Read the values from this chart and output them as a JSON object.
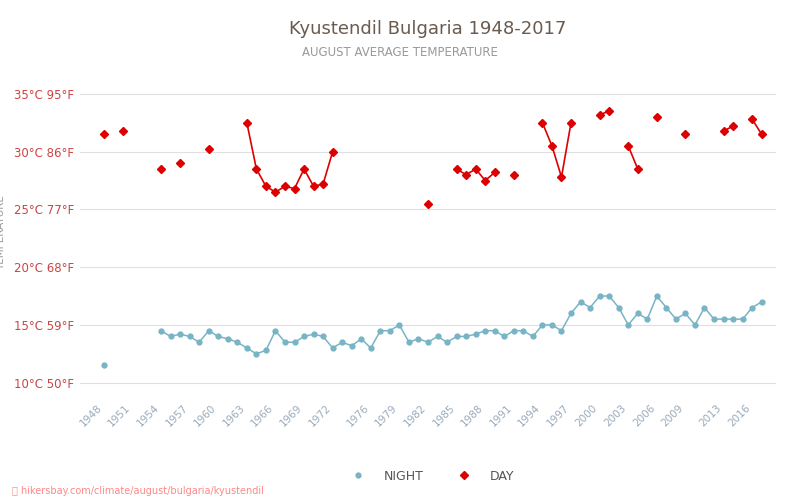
{
  "title": "Kyustendil Bulgaria 1948-2017",
  "subtitle": "AUGUST AVERAGE TEMPERATURE",
  "xlabel_years": [
    1948,
    1951,
    1954,
    1957,
    1960,
    1963,
    1966,
    1969,
    1972,
    1976,
    1979,
    1982,
    1985,
    1988,
    1991,
    1994,
    1997,
    2000,
    2003,
    2006,
    2009,
    2013,
    2016
  ],
  "years": [
    1948,
    1949,
    1950,
    1951,
    1952,
    1953,
    1954,
    1955,
    1956,
    1957,
    1958,
    1959,
    1960,
    1961,
    1962,
    1963,
    1964,
    1965,
    1966,
    1967,
    1968,
    1969,
    1970,
    1971,
    1972,
    1973,
    1974,
    1975,
    1976,
    1977,
    1978,
    1979,
    1980,
    1981,
    1982,
    1983,
    1984,
    1985,
    1986,
    1987,
    1988,
    1989,
    1990,
    1991,
    1992,
    1993,
    1994,
    1995,
    1996,
    1997,
    1998,
    1999,
    2000,
    2001,
    2002,
    2003,
    2004,
    2005,
    2006,
    2007,
    2008,
    2009,
    2010,
    2011,
    2012,
    2013,
    2014,
    2015,
    2016,
    2017
  ],
  "day_temps": [
    31.5,
    null,
    31.8,
    null,
    null,
    null,
    28.5,
    null,
    29.0,
    null,
    null,
    30.2,
    null,
    null,
    null,
    32.5,
    28.5,
    27.0,
    26.5,
    27.0,
    26.8,
    28.5,
    27.0,
    27.2,
    30.0,
    null,
    null,
    null,
    null,
    null,
    null,
    null,
    null,
    null,
    25.5,
    null,
    null,
    28.5,
    28.0,
    28.5,
    27.5,
    28.2,
    null,
    28.0,
    null,
    null,
    32.5,
    30.5,
    27.8,
    32.5,
    null,
    null,
    33.2,
    33.5,
    null,
    30.5,
    28.5,
    null,
    33.0,
    null,
    null,
    31.5,
    null,
    null,
    null,
    31.8,
    32.2,
    null,
    32.8,
    31.5
  ],
  "night_temps": [
    11.5,
    null,
    null,
    null,
    null,
    null,
    14.5,
    14.0,
    14.2,
    14.0,
    13.5,
    14.5,
    14.0,
    13.8,
    13.5,
    13.0,
    12.5,
    12.8,
    14.5,
    13.5,
    13.5,
    14.0,
    14.2,
    14.0,
    13.0,
    13.5,
    13.2,
    13.8,
    13.0,
    14.5,
    14.5,
    15.0,
    13.5,
    13.8,
    13.5,
    14.0,
    13.5,
    14.0,
    14.0,
    14.2,
    14.5,
    14.5,
    14.0,
    14.5,
    14.5,
    14.0,
    15.0,
    15.0,
    14.5,
    16.0,
    17.0,
    16.5,
    17.5,
    17.5,
    16.5,
    15.0,
    16.0,
    15.5,
    17.5,
    16.5,
    15.5,
    16.0,
    15.0,
    16.5,
    15.5,
    15.5,
    15.5,
    15.5,
    16.5,
    17.0
  ],
  "day_color": "#dd0000",
  "night_color": "#78b4c5",
  "title_color": "#6b5a4e",
  "subtitle_color": "#999999",
  "ylabel_color": "#999999",
  "ytick_color": "#cc4444",
  "xtick_color": "#99aabb",
  "grid_color": "#e0e0e0",
  "background_color": "#ffffff",
  "yticks_c": [
    10,
    15,
    20,
    25,
    30,
    35
  ],
  "yticks_f": [
    50,
    59,
    68,
    77,
    86,
    95
  ],
  "ylim": [
    8.5,
    37.5
  ],
  "footer_text": "hikersbay.com/climate/august/bulgaria/kyustendil",
  "legend_night": "NIGHT",
  "legend_day": "DAY"
}
